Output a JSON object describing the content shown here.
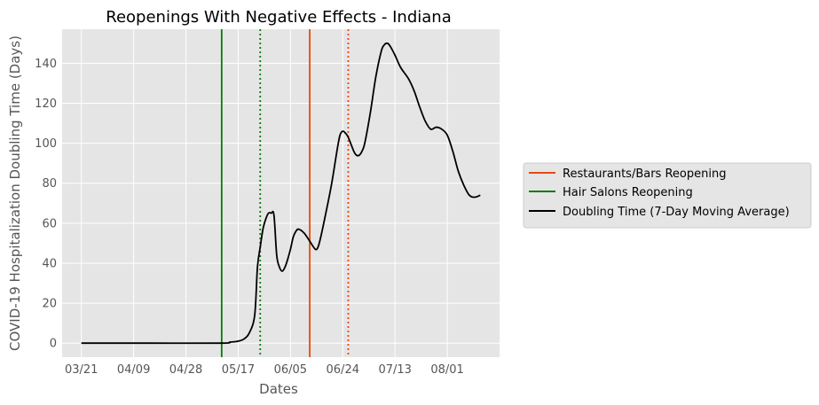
{
  "chart_data": {
    "type": "line",
    "title": "Reopenings With Negative Effects - Indiana",
    "xlabel": "Dates",
    "ylabel": "COVID-19 Hospitalization Doubling Time (Days)",
    "x_tick_labels": [
      "03/21",
      "04/09",
      "04/28",
      "05/17",
      "06/05",
      "06/24",
      "07/13",
      "08/01"
    ],
    "y_ticks": [
      0,
      20,
      40,
      60,
      80,
      100,
      120,
      140
    ],
    "xlim": [
      "2020-03-14",
      "2020-08-20"
    ],
    "ylim": [
      -7,
      157
    ],
    "grid": true,
    "background_color": "#e5e5e5",
    "legend_position": "right",
    "legend": [
      {
        "label": "Restaurants/Bars Reopening",
        "color": "#e8490f"
      },
      {
        "label": "Hair Salons Reopening",
        "color": "#0a7a0a"
      },
      {
        "label": "Doubling Time (7-Day Moving Average)",
        "color": "#000000"
      }
    ],
    "vertical_lines": [
      {
        "date": "2020-05-11",
        "color": "#0a7a0a",
        "style": "solid"
      },
      {
        "date": "2020-05-25",
        "color": "#0a7a0a",
        "style": "dotted"
      },
      {
        "date": "2020-06-12",
        "color": "#e8490f",
        "style": "solid"
      },
      {
        "date": "2020-06-26",
        "color": "#e8490f",
        "style": "dotted"
      }
    ],
    "series": [
      {
        "name": "Doubling Time (7-Day Moving Average)",
        "color": "#000000",
        "points": [
          [
            "2020-03-21",
            0
          ],
          [
            "2020-04-15",
            0
          ],
          [
            "2020-05-11",
            0
          ],
          [
            "2020-05-14",
            0.5
          ],
          [
            "2020-05-17",
            1
          ],
          [
            "2020-05-19",
            2
          ],
          [
            "2020-05-21",
            5
          ],
          [
            "2020-05-23",
            14
          ],
          [
            "2020-05-24",
            38
          ],
          [
            "2020-05-25",
            48
          ],
          [
            "2020-05-26",
            57
          ],
          [
            "2020-05-27",
            62
          ],
          [
            "2020-05-28",
            65
          ],
          [
            "2020-05-29",
            65
          ],
          [
            "2020-05-30",
            64
          ],
          [
            "2020-05-31",
            44
          ],
          [
            "2020-06-01",
            38
          ],
          [
            "2020-06-02",
            36
          ],
          [
            "2020-06-03",
            38
          ],
          [
            "2020-06-04",
            42
          ],
          [
            "2020-06-05",
            47
          ],
          [
            "2020-06-06",
            53
          ],
          [
            "2020-06-07",
            56
          ],
          [
            "2020-06-08",
            57
          ],
          [
            "2020-06-10",
            55
          ],
          [
            "2020-06-12",
            51
          ],
          [
            "2020-06-14",
            47
          ],
          [
            "2020-06-15",
            48
          ],
          [
            "2020-06-16",
            53
          ],
          [
            "2020-06-18",
            66
          ],
          [
            "2020-06-20",
            80
          ],
          [
            "2020-06-22",
            97
          ],
          [
            "2020-06-23",
            104
          ],
          [
            "2020-06-24",
            106
          ],
          [
            "2020-06-25",
            105
          ],
          [
            "2020-06-26",
            103
          ],
          [
            "2020-06-28",
            96
          ],
          [
            "2020-06-29",
            94
          ],
          [
            "2020-06-30",
            94
          ],
          [
            "2020-07-01",
            96
          ],
          [
            "2020-07-02",
            100
          ],
          [
            "2020-07-04",
            115
          ],
          [
            "2020-07-06",
            133
          ],
          [
            "2020-07-08",
            146
          ],
          [
            "2020-07-09",
            149
          ],
          [
            "2020-07-10",
            150
          ],
          [
            "2020-07-11",
            149
          ],
          [
            "2020-07-13",
            144
          ],
          [
            "2020-07-15",
            138
          ],
          [
            "2020-07-18",
            132
          ],
          [
            "2020-07-20",
            126
          ],
          [
            "2020-07-22",
            118
          ],
          [
            "2020-07-24",
            111
          ],
          [
            "2020-07-26",
            107
          ],
          [
            "2020-07-28",
            108
          ],
          [
            "2020-07-30",
            107
          ],
          [
            "2020-08-01",
            104
          ],
          [
            "2020-08-03",
            96
          ],
          [
            "2020-08-05",
            86
          ],
          [
            "2020-08-07",
            79
          ],
          [
            "2020-08-09",
            74
          ],
          [
            "2020-08-11",
            73
          ],
          [
            "2020-08-13",
            74
          ]
        ]
      }
    ]
  }
}
